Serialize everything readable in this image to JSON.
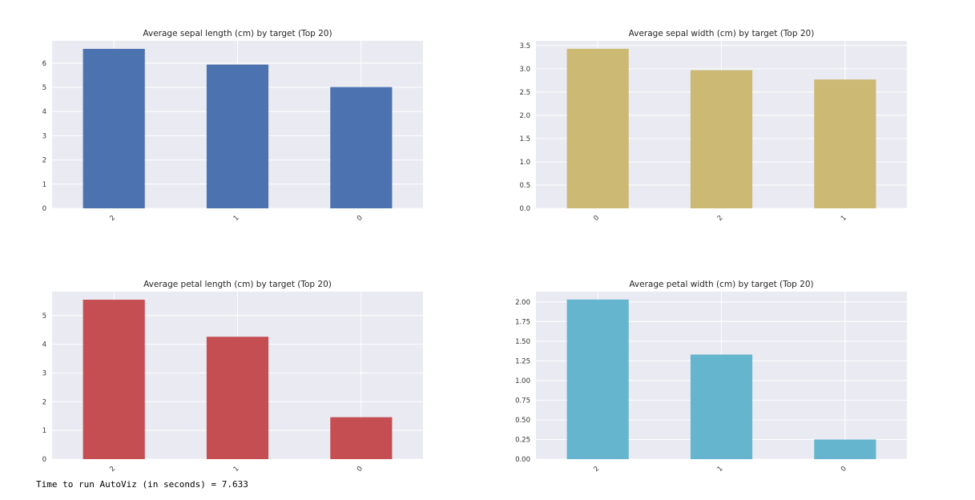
{
  "chart_data": [
    {
      "type": "bar",
      "title": "Average sepal length (cm) by target (Top 20)",
      "categories": [
        "2",
        "1",
        "0"
      ],
      "values": [
        6.59,
        5.94,
        5.01
      ],
      "ylim": [
        0,
        6.92
      ],
      "yticks": [
        0,
        1,
        2,
        3,
        4,
        5,
        6
      ],
      "ytick_labels": [
        "0",
        "1",
        "2",
        "3",
        "4",
        "5",
        "6"
      ],
      "color": "#4c72b0",
      "xlabel": "",
      "ylabel": ""
    },
    {
      "type": "bar",
      "title": "Average sepal width (cm) by target (Top 20)",
      "categories": [
        "0",
        "2",
        "1"
      ],
      "values": [
        3.43,
        2.97,
        2.77
      ],
      "ylim": [
        0,
        3.6
      ],
      "yticks": [
        0,
        0.5,
        1.0,
        1.5,
        2.0,
        2.5,
        3.0,
        3.5
      ],
      "ytick_labels": [
        "0.0",
        "0.5",
        "1.0",
        "1.5",
        "2.0",
        "2.5",
        "3.0",
        "3.5"
      ],
      "color": "#ccb974",
      "xlabel": "",
      "ylabel": ""
    },
    {
      "type": "bar",
      "title": "Average petal length (cm) by target (Top 20)",
      "categories": [
        "2",
        "1",
        "0"
      ],
      "values": [
        5.55,
        4.26,
        1.46
      ],
      "ylim": [
        0,
        5.83
      ],
      "yticks": [
        0,
        1,
        2,
        3,
        4,
        5
      ],
      "ytick_labels": [
        "0",
        "1",
        "2",
        "3",
        "4",
        "5"
      ],
      "color": "#c44e52",
      "xlabel": "",
      "ylabel": ""
    },
    {
      "type": "bar",
      "title": "Average petal width (cm) by target (Top 20)",
      "categories": [
        "2",
        "1",
        "0"
      ],
      "values": [
        2.03,
        1.33,
        0.25
      ],
      "ylim": [
        0,
        2.13
      ],
      "yticks": [
        0,
        0.25,
        0.5,
        0.75,
        1.0,
        1.25,
        1.5,
        1.75,
        2.0
      ],
      "ytick_labels": [
        "0.00",
        "0.25",
        "0.50",
        "0.75",
        "1.00",
        "1.25",
        "1.50",
        "1.75",
        "2.00"
      ],
      "color": "#64b5cd",
      "xlabel": "",
      "ylabel": ""
    }
  ],
  "footer": {
    "text": "Time to run AutoViz (in seconds) = 7.633"
  }
}
